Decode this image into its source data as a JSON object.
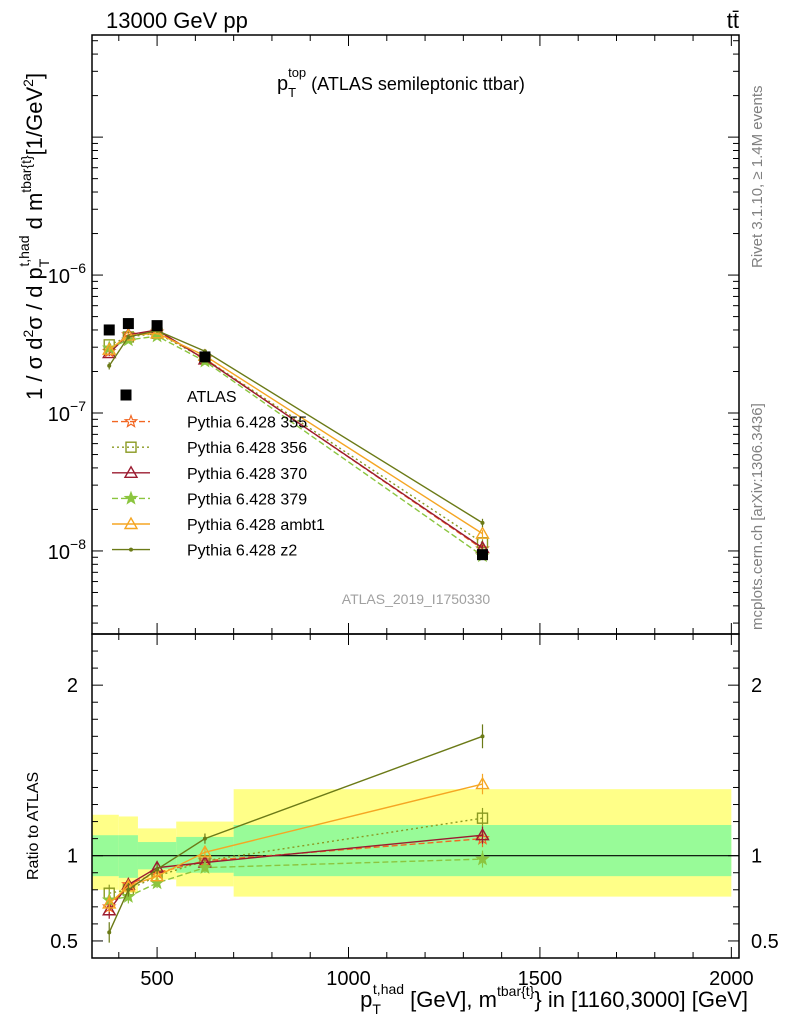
{
  "header": {
    "left": "13000 GeV pp",
    "right": "tt̄"
  },
  "chart_data": {
    "type": "line",
    "title": {
      "base": "p",
      "sub": "T",
      "sup": "top",
      "rest": " (ATLAS semileptonic ttbar)"
    },
    "ylabel": {
      "pre": "1 / σ d",
      "sup2": "2",
      "mid": "σ / d p",
      "sub_t": "T",
      "sup_had": "t,had",
      "dm": " d m",
      "sup_tbar": "tbar{t}",
      "unit_pre": "[1/GeV",
      "unit_sup": "2",
      "unit_post": "]"
    },
    "xlabel": {
      "p": "p",
      "sub_t": "T",
      "sup_had": "t,had",
      "mid": " [GeV], m",
      "sup_tbar": "tbar{t}",
      "post": "} in [1160,3000] [GeV]"
    },
    "ratio_ylabel": "Ratio to ATLAS",
    "side_texts": {
      "rivet": "Rivet 3.1.10, ≥ 1.4M events",
      "mcplots": "mcplots.cern.ch [arXiv:1306.3436]"
    },
    "analysis_label": "ATLAS_2019_I1750330",
    "xlim": [
      330,
      2020
    ],
    "ylim_main": [
      2.5e-09,
      5.5e-05
    ],
    "ylim_ratio": [
      0.4,
      2.3
    ],
    "x_ticks": [
      500,
      1000,
      1500,
      2000
    ],
    "y_tick_labels_main": [
      {
        "value": 1e-06,
        "base": "10",
        "exp": "−6"
      },
      {
        "value": 1e-07,
        "base": "10",
        "exp": "−7"
      },
      {
        "value": 1e-08,
        "base": "10",
        "exp": "−8"
      }
    ],
    "y_ticks_ratio": [
      0.5,
      1,
      2
    ],
    "bins": [
      [
        330,
        400
      ],
      [
        400,
        450
      ],
      [
        450,
        550
      ],
      [
        550,
        700
      ],
      [
        700,
        2000
      ]
    ],
    "x": [
      375,
      425,
      500,
      625,
      1350
    ],
    "data": {
      "name": "ATLAS",
      "values": [
        4e-07,
        4.45e-07,
        4.3e-07,
        2.55e-07,
        9.4e-09
      ],
      "band_1sigma": [
        [
          0.88,
          1.12
        ],
        [
          0.87,
          1.12
        ],
        [
          0.92,
          1.08
        ],
        [
          0.9,
          1.11
        ],
        [
          0.88,
          1.18
        ]
      ],
      "band_2sigma": [
        [
          0.8,
          1.24
        ],
        [
          0.78,
          1.23
        ],
        [
          0.86,
          1.16
        ],
        [
          0.82,
          1.2
        ],
        [
          0.76,
          1.39
        ]
      ]
    },
    "series": [
      {
        "name": "Pythia 6.428 355",
        "color": "#f26722",
        "dash": "6,3",
        "marker": "star-open",
        "ratio": [
          0.7,
          0.83,
          0.9,
          0.97,
          1.1
        ],
        "ratio_err": [
          0.05,
          0.04,
          0.03,
          0.03,
          0.05
        ]
      },
      {
        "name": "Pythia 6.428 356",
        "color": "#8a9a22",
        "dash": "2,3",
        "marker": "square-open",
        "ratio": [
          0.78,
          0.8,
          0.88,
          0.97,
          1.22
        ],
        "ratio_err": [
          0.05,
          0.04,
          0.03,
          0.03,
          0.06
        ]
      },
      {
        "name": "Pythia 6.428 370",
        "color": "#9b1b30",
        "dash": "",
        "marker": "triangle-open",
        "ratio": [
          0.68,
          0.83,
          0.93,
          0.96,
          1.12
        ],
        "ratio_err": [
          0.05,
          0.04,
          0.03,
          0.03,
          0.05
        ]
      },
      {
        "name": "Pythia 6.428 379",
        "color": "#8bc53f",
        "dash": "6,3",
        "marker": "star-filled",
        "ratio": [
          0.74,
          0.76,
          0.84,
          0.93,
          0.98
        ],
        "ratio_err": [
          0.05,
          0.04,
          0.03,
          0.03,
          0.05
        ]
      },
      {
        "name": "Pythia 6.428 ambt1",
        "color": "#f5a623",
        "dash": "",
        "marker": "triangle-open",
        "ratio": [
          0.72,
          0.82,
          0.88,
          1.02,
          1.42
        ],
        "ratio_err": [
          0.05,
          0.04,
          0.03,
          0.03,
          0.06
        ]
      },
      {
        "name": "Pythia 6.428 z2",
        "color": "#6b7a17",
        "dash": "",
        "marker": "dot",
        "ratio": [
          0.55,
          0.8,
          0.92,
          1.1,
          1.7
        ],
        "ratio_err": [
          0.06,
          0.04,
          0.03,
          0.03,
          0.07
        ]
      }
    ],
    "colors": {
      "band_1sigma": "#98fb98",
      "band_2sigma": "#ffff88",
      "data_marker": "#000000",
      "side_text": "#808080",
      "analysis_label": "#a0a0a0"
    }
  }
}
